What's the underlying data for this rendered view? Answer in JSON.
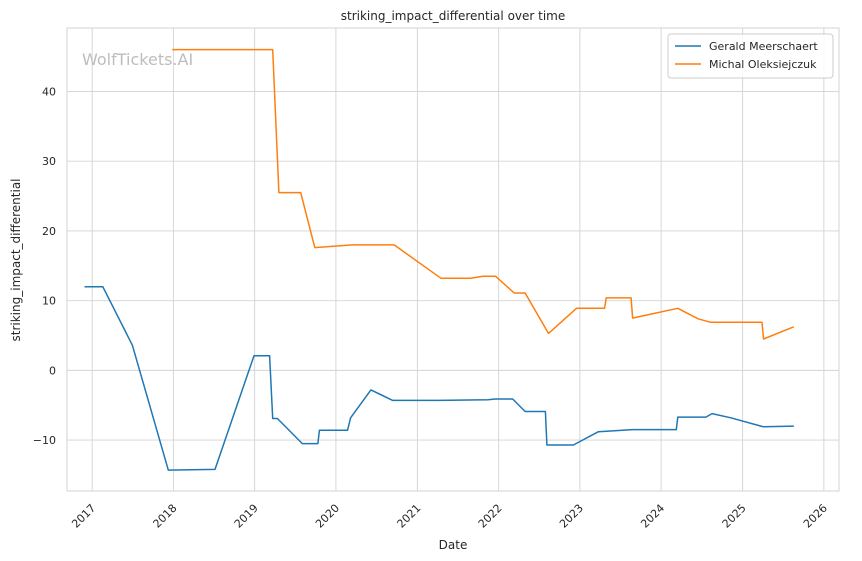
{
  "chart_data": {
    "type": "line",
    "title": "striking_impact_differential over time",
    "xlabel": "Date",
    "ylabel": "striking_impact_differential",
    "watermark": "WolfTickets.AI",
    "grid": true,
    "legend_position": "top-right",
    "x_ticks": [
      "2017",
      "2018",
      "2019",
      "2020",
      "2021",
      "2022",
      "2023",
      "2024",
      "2025",
      "2026"
    ],
    "y_ticks": [
      -10,
      0,
      10,
      20,
      30,
      40
    ],
    "xlim": [
      "2016-09-10",
      "2026-03-10"
    ],
    "ylim": [
      -17.3,
      49.1
    ],
    "series": [
      {
        "name": "Gerald Meerschaert",
        "color": "#1f77b4",
        "points": [
          [
            "2016-12-01",
            12.0
          ],
          [
            "2017-02-18",
            12.0
          ],
          [
            "2017-07-01",
            3.6
          ],
          [
            "2017-12-09",
            -14.3
          ],
          [
            "2018-07-07",
            -14.2
          ],
          [
            "2018-12-29",
            2.1
          ],
          [
            "2019-03-09",
            2.1
          ],
          [
            "2019-03-23",
            -6.9
          ],
          [
            "2019-04-13",
            -6.9
          ],
          [
            "2019-08-03",
            -10.5
          ],
          [
            "2019-10-12",
            -10.5
          ],
          [
            "2019-10-19",
            -8.6
          ],
          [
            "2020-02-22",
            -8.6
          ],
          [
            "2020-03-07",
            -6.8
          ],
          [
            "2020-06-06",
            -2.8
          ],
          [
            "2020-09-12",
            -4.3
          ],
          [
            "2021-04-10",
            -4.3
          ],
          [
            "2021-11-13",
            -4.2
          ],
          [
            "2021-12-18",
            -4.1
          ],
          [
            "2022-03-05",
            -4.1
          ],
          [
            "2022-04-30",
            -5.9
          ],
          [
            "2022-07-30",
            -5.9
          ],
          [
            "2022-08-06",
            -10.7
          ],
          [
            "2022-12-03",
            -10.7
          ],
          [
            "2023-03-25",
            -8.8
          ],
          [
            "2023-08-26",
            -8.5
          ],
          [
            "2024-03-09",
            -8.5
          ],
          [
            "2024-03-16",
            -6.7
          ],
          [
            "2024-07-20",
            -6.7
          ],
          [
            "2024-08-17",
            -6.2
          ],
          [
            "2024-11-09",
            -6.8
          ],
          [
            "2025-04-05",
            -8.1
          ],
          [
            "2025-08-16",
            -8.0
          ]
        ]
      },
      {
        "name": "Michal Oleksiejczuk",
        "color": "#ff7f0e",
        "points": [
          [
            "2017-12-30",
            46.0
          ],
          [
            "2019-03-23",
            46.0
          ],
          [
            "2019-04-20",
            25.5
          ],
          [
            "2019-07-27",
            25.5
          ],
          [
            "2019-09-28",
            17.6
          ],
          [
            "2020-03-14",
            18.0
          ],
          [
            "2020-09-19",
            18.0
          ],
          [
            "2021-04-17",
            13.2
          ],
          [
            "2021-08-28",
            13.2
          ],
          [
            "2021-10-23",
            13.5
          ],
          [
            "2021-12-18",
            13.5
          ],
          [
            "2022-03-12",
            11.1
          ],
          [
            "2022-04-30",
            11.1
          ],
          [
            "2022-08-13",
            5.3
          ],
          [
            "2022-12-17",
            8.9
          ],
          [
            "2023-04-22",
            8.9
          ],
          [
            "2023-04-29",
            10.4
          ],
          [
            "2023-08-19",
            10.4
          ],
          [
            "2023-08-26",
            7.5
          ],
          [
            "2024-03-16",
            8.9
          ],
          [
            "2024-06-15",
            7.4
          ],
          [
            "2024-08-10",
            6.9
          ],
          [
            "2025-03-29",
            6.9
          ],
          [
            "2025-04-05",
            4.5
          ],
          [
            "2025-08-16",
            6.2
          ]
        ]
      }
    ]
  }
}
